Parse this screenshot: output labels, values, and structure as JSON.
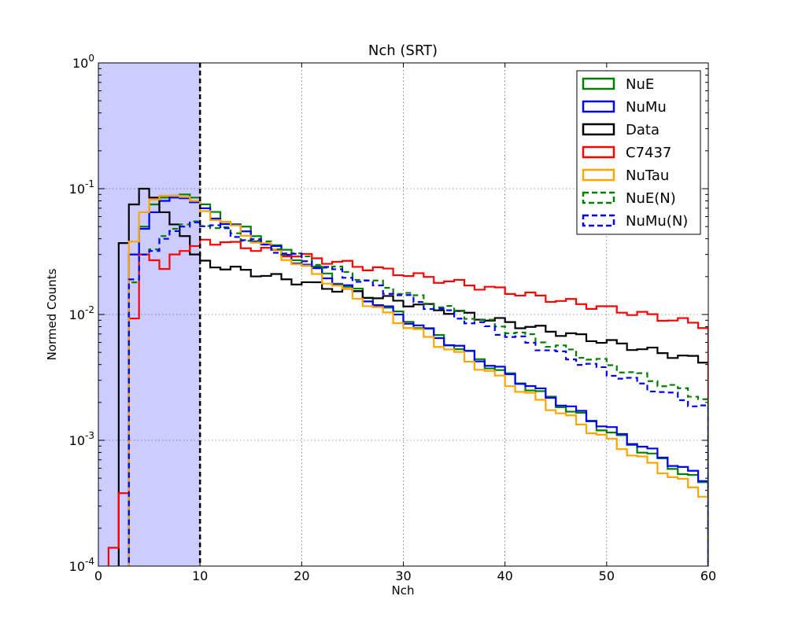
{
  "chart_data": {
    "type": "line",
    "title": "Nch (SRT)",
    "xlabel": "Nch",
    "ylabel": "Normed Counts",
    "xlim": [
      0,
      60
    ],
    "ylim": [
      0.0001,
      1
    ],
    "yscale": "log",
    "grid": true,
    "legend_position": "top-right",
    "xticks": [
      0,
      10,
      20,
      30,
      40,
      50,
      60
    ],
    "xtick_labels": [
      "0",
      "10",
      "20",
      "30",
      "40",
      "50",
      "60"
    ],
    "yticks": [
      0.0001,
      0.001,
      0.01,
      0.1,
      1
    ],
    "ytick_labels": [
      {
        "base": "10",
        "exp": "-4"
      },
      {
        "base": "10",
        "exp": "-3"
      },
      {
        "base": "10",
        "exp": "-2"
      },
      {
        "base": "10",
        "exp": "-1"
      },
      {
        "base": "10",
        "exp": "0"
      }
    ],
    "shaded_region": {
      "x": [
        0,
        10
      ],
      "color": "#ccccff"
    },
    "vline": {
      "x": 10,
      "style": "dashed",
      "color": "#000000"
    },
    "series": [
      {
        "name": "NuE",
        "color": "#008000",
        "style": "solid"
      },
      {
        "name": "NuMu",
        "color": "#0000ff",
        "style": "solid"
      },
      {
        "name": "Data",
        "color": "#000000",
        "style": "solid"
      },
      {
        "name": "C7437",
        "color": "#ff0000",
        "style": "solid"
      },
      {
        "name": "NuTau",
        "color": "#ffa500",
        "style": "solid"
      },
      {
        "name": "NuE(N)",
        "color": "#008000",
        "style": "dashed"
      },
      {
        "name": "NuMu(N)",
        "color": "#0000ff",
        "style": "dashed"
      }
    ]
  }
}
